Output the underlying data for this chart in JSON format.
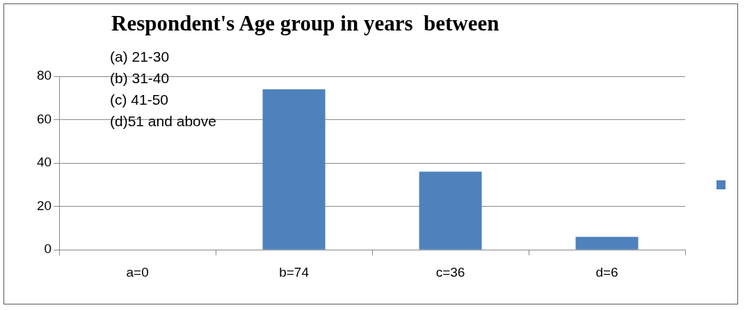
{
  "chart_data": {
    "type": "bar",
    "title": "Respondent's Age group in years  between",
    "annotations": [
      "(a) 21-30",
      "(b) 31-40",
      "(c) 41-50",
      "(d)51 and above"
    ],
    "categories": [
      "a=0",
      "b=74",
      "c=36",
      "d=6"
    ],
    "values": [
      0,
      74,
      36,
      6
    ],
    "color": "#4f81bd",
    "ylim": [
      0,
      80
    ],
    "yticks": [
      0,
      20,
      40,
      60,
      80
    ],
    "grid": "y"
  }
}
